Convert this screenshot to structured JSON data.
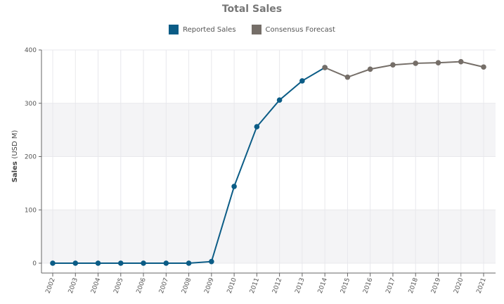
{
  "chart_data": {
    "type": "line",
    "title": "Total Sales",
    "xlabel": "",
    "ylabel": "Sales",
    "yunit": "(USD M)",
    "ylim": [
      0,
      400
    ],
    "yticks": [
      0,
      100,
      200,
      300,
      400
    ],
    "categories": [
      "2002",
      "2003",
      "2004",
      "2005",
      "2006",
      "2007",
      "2008",
      "2009",
      "2010",
      "2011",
      "2012",
      "2013",
      "2014",
      "2015",
      "2016",
      "2017",
      "2018",
      "2019",
      "2020",
      "2021"
    ],
    "series": [
      {
        "name": "Reported Sales",
        "color": "#0b5c86",
        "values": [
          0,
          0,
          0,
          0,
          0,
          0,
          0,
          3,
          144,
          256,
          306,
          342,
          367,
          null,
          null,
          null,
          null,
          null,
          null,
          null
        ]
      },
      {
        "name": "Consensus Forecast",
        "color": "#756e68",
        "values": [
          null,
          null,
          null,
          null,
          null,
          null,
          null,
          null,
          null,
          null,
          null,
          null,
          367,
          349,
          364,
          372,
          375,
          376,
          378,
          368
        ]
      }
    ],
    "legend": "top-center",
    "grid": true
  }
}
